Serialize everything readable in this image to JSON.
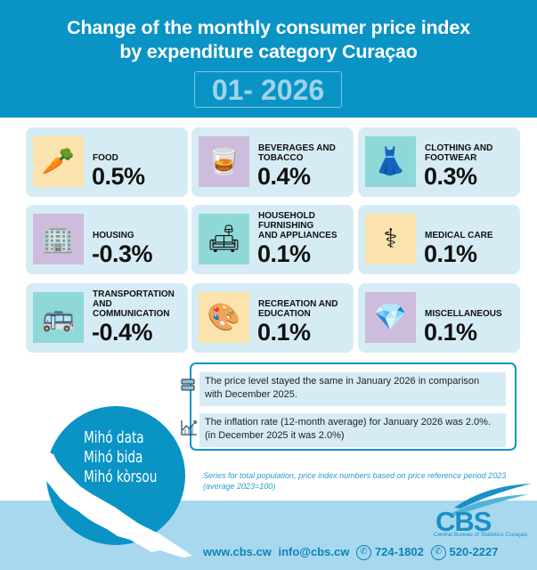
{
  "header": {
    "title_line1": "Change of the monthly consumer price index",
    "title_line2": "by expenditure category Curaçao",
    "period": "01- 2026"
  },
  "colors": {
    "brand_blue": "#0a93c5",
    "card_bg": "#d6ecf5",
    "footer_band": "#a8d8ee"
  },
  "categories": [
    {
      "label_lines": [
        "FOOD"
      ],
      "value": "0.5%",
      "icon": "cornucopia-icon",
      "icon_bg": "#fbe3ad"
    },
    {
      "label_lines": [
        "BEVERAGES AND",
        "TOBACCO"
      ],
      "value": "0.4%",
      "icon": "whiskey-cigar-icon",
      "icon_bg": "#cdbcdc"
    },
    {
      "label_lines": [
        "CLOTHING AND",
        "FOOTWEAR"
      ],
      "value": "0.3%",
      "icon": "clothing-icon",
      "icon_bg": "#8ed8d8"
    },
    {
      "label_lines": [
        "HOUSING"
      ],
      "value": "-0.3%",
      "icon": "building-house-icon",
      "icon_bg": "#cdbcdc"
    },
    {
      "label_lines": [
        "HOUSEHOLD",
        "FURNISHING",
        "AND APPLIANCES"
      ],
      "value": "0.1%",
      "icon": "furniture-appliances-icon",
      "icon_bg": "#8ed8d8"
    },
    {
      "label_lines": [
        "MEDICAL CARE"
      ],
      "value": "0.1%",
      "icon": "caduceus-icon",
      "icon_bg": "#fbe3ad"
    },
    {
      "label_lines": [
        "TRANSPORTATION",
        "AND",
        "COMMUNICATION"
      ],
      "value": "-0.4%",
      "icon": "car-bus-satellite-icon",
      "icon_bg": "#8ed8d8"
    },
    {
      "label_lines": [
        "RECREATION AND",
        "EDUCATION"
      ],
      "value": "0.1%",
      "icon": "palette-graduation-icon",
      "icon_bg": "#fbe3ad"
    },
    {
      "label_lines": [
        "MISCELLANEOUS"
      ],
      "value": "0.1%",
      "icon": "gem-gears-icon",
      "icon_bg": "#cdbcdc"
    }
  ],
  "summary": {
    "price_level_line1": "The price level stayed the same in January 2026 in comparison",
    "price_level_line2": "with December 2025.",
    "inflation_line1": "The inflation rate (12-month average) for January 2026 was 2.0%.",
    "inflation_line2": "(in December 2025 it was 2.0%)"
  },
  "footnote": {
    "line1": "Series for total population, price index numbers based on price reference period 2023",
    "line2": "(average 2023=100)"
  },
  "slogan": [
    "Mihó data",
    "Mihó bida",
    "Mihó kòrsou"
  ],
  "logo": {
    "name": "CBS",
    "subtitle": "Central Bureau of Statistics Curaçao"
  },
  "contacts": {
    "website": "www.cbs.cw",
    "email": "info@cbs.cw",
    "phone": "724-1802",
    "whatsapp": "520-2227"
  }
}
